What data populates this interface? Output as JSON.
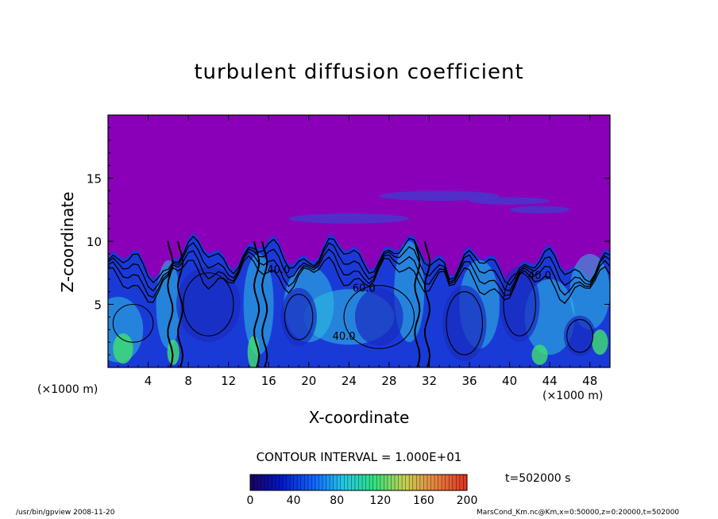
{
  "chart_data": {
    "type": "heatmap",
    "title": "turbulent diffusion coefficient",
    "xlabel": "X-coordinate",
    "ylabel": "Z-coordinate",
    "x_unit": "(×1000 m)",
    "z_unit": "(×1000 m)",
    "xlim": [
      0,
      50
    ],
    "ylim": [
      0,
      20
    ],
    "x_ticks": [
      4,
      8,
      12,
      16,
      20,
      24,
      28,
      32,
      36,
      40,
      44,
      48
    ],
    "y_ticks": [
      5,
      10,
      15
    ],
    "grid": false,
    "contour_interval": "CONTOUR INTERVAL = 1.000E+01",
    "contour_labels": [
      {
        "text": "40.0",
        "x": 23.5,
        "z": 2.2
      },
      {
        "text": "60.0",
        "x": 25.5,
        "z": 6.0
      },
      {
        "text": "40.0",
        "x": 43.0,
        "z": 7.0
      },
      {
        "text": "40.0",
        "x": 17.0,
        "z": 7.5
      }
    ],
    "colorbar": {
      "min": 0,
      "max": 200,
      "tick_labels": [
        "0",
        "40",
        "80",
        "120",
        "160",
        "200"
      ],
      "colors": [
        "#1a0060",
        "#0018c8",
        "#1060ff",
        "#20c8e8",
        "#30e080",
        "#c8d050",
        "#e88040",
        "#e03020"
      ]
    },
    "colors": {
      "background_field": "#8a00b8",
      "low_field": "#1a3ad8",
      "mid_field": "#30c0e0",
      "high_field": "#40e070"
    }
  },
  "annotations": {
    "time": "t=502000 s",
    "footer_left": "/usr/bin/gpview   2008-11-20",
    "footer_right": "MarsCond_Km.nc@Km,x=0:50000,z=0:20000,t=502000"
  }
}
